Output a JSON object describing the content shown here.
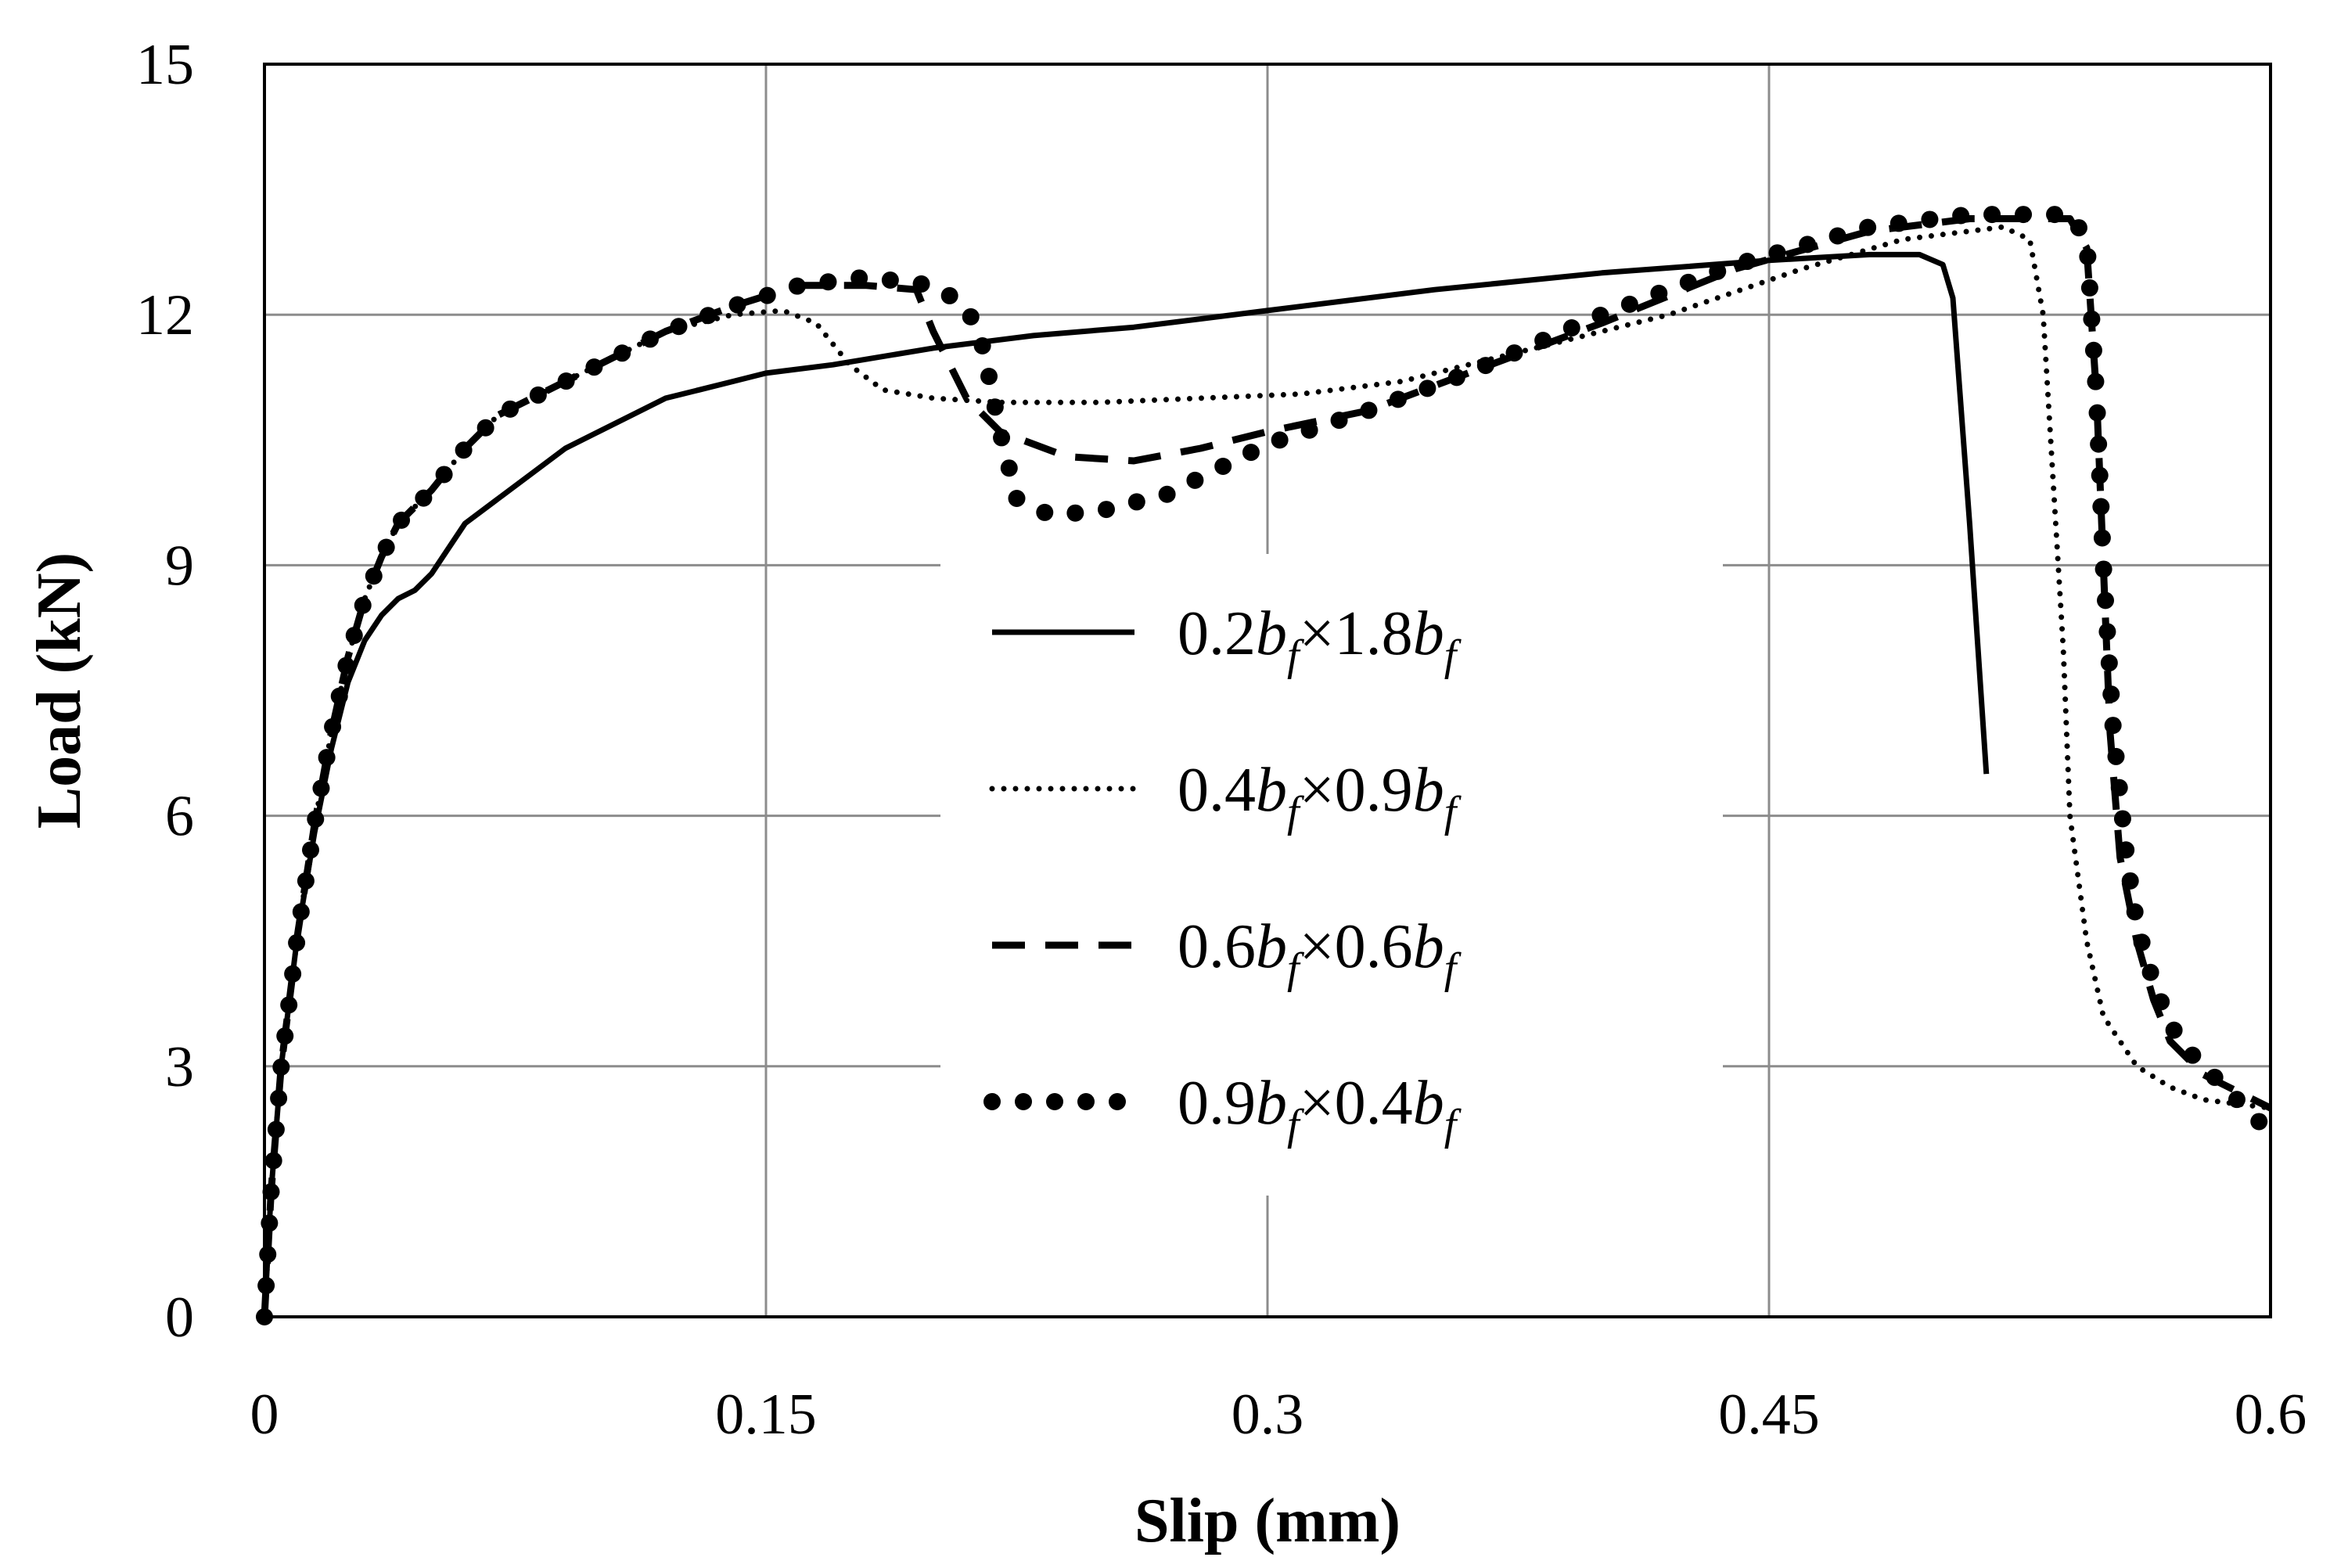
{
  "chart_data": {
    "type": "line",
    "title": "",
    "xlabel": "Slip (mm)",
    "ylabel": "Load (kN)",
    "xlim": [
      0,
      0.6
    ],
    "ylim": [
      0,
      15
    ],
    "x_ticks": [
      "0",
      "0.15",
      "0.3",
      "0.45",
      "0.6"
    ],
    "y_ticks": [
      "0",
      "3",
      "6",
      "9",
      "12",
      "15"
    ],
    "grid": true,
    "legend_position": "center",
    "series": [
      {
        "name": "0.2b_f×1.8b_f",
        "label_parts": [
          "0.2",
          "b",
          "f",
          "×1.8",
          "b",
          "f"
        ],
        "style": "solid",
        "points": [
          [
            0,
            0
          ],
          [
            0.002,
            1.5
          ],
          [
            0.005,
            3.0
          ],
          [
            0.01,
            4.6
          ],
          [
            0.015,
            5.8
          ],
          [
            0.02,
            6.8
          ],
          [
            0.025,
            7.6
          ],
          [
            0.03,
            8.1
          ],
          [
            0.035,
            8.4
          ],
          [
            0.04,
            8.6
          ],
          [
            0.045,
            8.7
          ],
          [
            0.05,
            8.9
          ],
          [
            0.055,
            9.2
          ],
          [
            0.06,
            9.5
          ],
          [
            0.07,
            9.8
          ],
          [
            0.08,
            10.1
          ],
          [
            0.09,
            10.4
          ],
          [
            0.1,
            10.6
          ],
          [
            0.11,
            10.8
          ],
          [
            0.12,
            11.0
          ],
          [
            0.13,
            11.1
          ],
          [
            0.14,
            11.2
          ],
          [
            0.15,
            11.3
          ],
          [
            0.17,
            11.4
          ],
          [
            0.2,
            11.6
          ],
          [
            0.23,
            11.75
          ],
          [
            0.26,
            11.85
          ],
          [
            0.3,
            12.05
          ],
          [
            0.35,
            12.3
          ],
          [
            0.4,
            12.5
          ],
          [
            0.45,
            12.65
          ],
          [
            0.48,
            12.72
          ],
          [
            0.495,
            12.72
          ],
          [
            0.502,
            12.6
          ],
          [
            0.505,
            12.2
          ],
          [
            0.51,
            9.5
          ],
          [
            0.515,
            6.5
          ]
        ]
      },
      {
        "name": "0.4b_f×0.9b_f",
        "label_parts": [
          "0.4",
          "b",
          "f",
          "×0.9",
          "b",
          "f"
        ],
        "style": "dotted",
        "points": [
          [
            0,
            0
          ],
          [
            0.002,
            1.5
          ],
          [
            0.005,
            3.0
          ],
          [
            0.01,
            4.6
          ],
          [
            0.015,
            5.9
          ],
          [
            0.02,
            7.0
          ],
          [
            0.025,
            7.9
          ],
          [
            0.03,
            8.6
          ],
          [
            0.035,
            9.1
          ],
          [
            0.04,
            9.5
          ],
          [
            0.05,
            9.9
          ],
          [
            0.06,
            10.4
          ],
          [
            0.07,
            10.8
          ],
          [
            0.08,
            11.0
          ],
          [
            0.1,
            11.4
          ],
          [
            0.12,
            11.8
          ],
          [
            0.14,
            12.0
          ],
          [
            0.155,
            12.05
          ],
          [
            0.165,
            11.9
          ],
          [
            0.175,
            11.4
          ],
          [
            0.185,
            11.1
          ],
          [
            0.2,
            11.0
          ],
          [
            0.22,
            10.95
          ],
          [
            0.25,
            10.95
          ],
          [
            0.28,
            11.0
          ],
          [
            0.31,
            11.05
          ],
          [
            0.34,
            11.2
          ],
          [
            0.38,
            11.6
          ],
          [
            0.42,
            12.0
          ],
          [
            0.46,
            12.55
          ],
          [
            0.49,
            12.9
          ],
          [
            0.52,
            13.05
          ],
          [
            0.528,
            12.9
          ],
          [
            0.532,
            12.0
          ],
          [
            0.535,
            10.0
          ],
          [
            0.538,
            8.0
          ],
          [
            0.54,
            6.0
          ],
          [
            0.545,
            4.5
          ],
          [
            0.55,
            3.6
          ],
          [
            0.56,
            3.0
          ],
          [
            0.57,
            2.75
          ],
          [
            0.58,
            2.6
          ],
          [
            0.6,
            2.5
          ]
        ]
      },
      {
        "name": "0.6b_f×0.6b_f",
        "label_parts": [
          "0.6",
          "b",
          "f",
          "×0.6",
          "b",
          "f"
        ],
        "style": "dashed",
        "points": [
          [
            0,
            0
          ],
          [
            0.002,
            1.5
          ],
          [
            0.005,
            3.0
          ],
          [
            0.01,
            4.6
          ],
          [
            0.015,
            5.9
          ],
          [
            0.02,
            7.0
          ],
          [
            0.025,
            7.9
          ],
          [
            0.03,
            8.6
          ],
          [
            0.035,
            9.1
          ],
          [
            0.04,
            9.5
          ],
          [
            0.05,
            9.9
          ],
          [
            0.06,
            10.4
          ],
          [
            0.07,
            10.8
          ],
          [
            0.08,
            11.0
          ],
          [
            0.1,
            11.4
          ],
          [
            0.12,
            11.8
          ],
          [
            0.14,
            12.1
          ],
          [
            0.16,
            12.35
          ],
          [
            0.18,
            12.35
          ],
          [
            0.195,
            12.3
          ],
          [
            0.2,
            11.8
          ],
          [
            0.21,
            11.0
          ],
          [
            0.22,
            10.6
          ],
          [
            0.24,
            10.3
          ],
          [
            0.26,
            10.25
          ],
          [
            0.28,
            10.4
          ],
          [
            0.3,
            10.6
          ],
          [
            0.33,
            10.85
          ],
          [
            0.36,
            11.3
          ],
          [
            0.4,
            11.9
          ],
          [
            0.44,
            12.55
          ],
          [
            0.48,
            13.0
          ],
          [
            0.51,
            13.15
          ],
          [
            0.54,
            13.15
          ],
          [
            0.545,
            12.8
          ],
          [
            0.548,
            11.0
          ],
          [
            0.55,
            9.0
          ],
          [
            0.552,
            7.0
          ],
          [
            0.555,
            5.5
          ],
          [
            0.56,
            4.5
          ],
          [
            0.565,
            3.8
          ],
          [
            0.57,
            3.3
          ],
          [
            0.58,
            2.9
          ],
          [
            0.59,
            2.7
          ],
          [
            0.6,
            2.5
          ]
        ]
      },
      {
        "name": "0.9b_f×0.4b_f",
        "label_parts": [
          "0.9",
          "b",
          "f",
          "×0.4",
          "b",
          "f"
        ],
        "style": "dots",
        "points": [
          [
            0,
            0
          ],
          [
            0.002,
            1.5
          ],
          [
            0.005,
            3.0
          ],
          [
            0.01,
            4.6
          ],
          [
            0.015,
            5.9
          ],
          [
            0.02,
            7.0
          ],
          [
            0.025,
            7.9
          ],
          [
            0.03,
            8.6
          ],
          [
            0.035,
            9.1
          ],
          [
            0.04,
            9.5
          ],
          [
            0.05,
            9.9
          ],
          [
            0.06,
            10.4
          ],
          [
            0.07,
            10.8
          ],
          [
            0.08,
            11.0
          ],
          [
            0.1,
            11.4
          ],
          [
            0.12,
            11.8
          ],
          [
            0.14,
            12.1
          ],
          [
            0.16,
            12.35
          ],
          [
            0.18,
            12.45
          ],
          [
            0.2,
            12.35
          ],
          [
            0.21,
            12.1
          ],
          [
            0.215,
            11.6
          ],
          [
            0.22,
            10.6
          ],
          [
            0.225,
            9.8
          ],
          [
            0.235,
            9.6
          ],
          [
            0.25,
            9.65
          ],
          [
            0.27,
            9.85
          ],
          [
            0.3,
            10.45
          ],
          [
            0.33,
            10.85
          ],
          [
            0.36,
            11.3
          ],
          [
            0.4,
            12.0
          ],
          [
            0.44,
            12.6
          ],
          [
            0.48,
            13.05
          ],
          [
            0.51,
            13.2
          ],
          [
            0.54,
            13.2
          ],
          [
            0.545,
            12.9
          ],
          [
            0.548,
            11.0
          ],
          [
            0.55,
            9.0
          ],
          [
            0.553,
            7.0
          ],
          [
            0.557,
            5.5
          ],
          [
            0.56,
            4.7
          ],
          [
            0.565,
            4.0
          ],
          [
            0.57,
            3.5
          ],
          [
            0.575,
            3.2
          ],
          [
            0.58,
            3.0
          ],
          [
            0.585,
            2.8
          ],
          [
            0.59,
            2.6
          ],
          [
            0.6,
            2.2
          ]
        ]
      }
    ]
  }
}
